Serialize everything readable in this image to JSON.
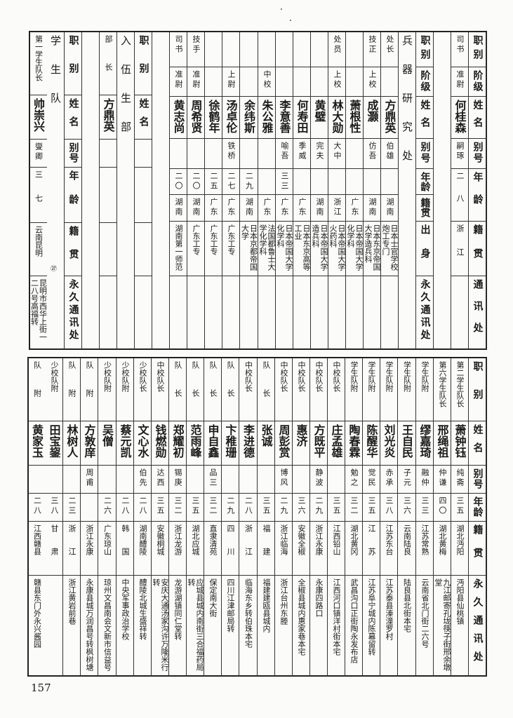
{
  "top": {
    "sections": [
      {
        "title": "",
        "headers": [
          "职别",
          "阶级",
          "姓名",
          "别号",
          "年龄",
          "籍贯",
          "通讯处"
        ],
        "rows": [
          [
            "司书",
            "准尉",
            "何桂森",
            "嗣琢",
            "二八",
            "浙江",
            ""
          ]
        ]
      },
      {
        "title": "兵器研究处",
        "headers": [
          "职别",
          "阶级",
          "姓名",
          "别号",
          "年龄",
          "籍贯",
          "出身",
          "永久通讯处"
        ],
        "rows": [
          [
            "处长",
            "",
            "方鼎英",
            "伯雄",
            "",
            "湖南",
            "日本士官学校炮工专门",
            ""
          ],
          [
            "技正",
            "上校",
            "成灏",
            "仿吾",
            "",
            "湖南",
            "日本东京帝国大学造兵科",
            ""
          ],
          [
            "",
            "",
            "萧根性",
            "",
            "",
            "广东",
            "日本帝国大学化学科",
            ""
          ],
          [
            "处员",
            "上校",
            "林大勋",
            "大中",
            "",
            "浙江",
            "日本帝国大学火药科",
            ""
          ],
          [
            "",
            "",
            "黄璧",
            "完夫",
            "",
            "湖南",
            "日本帝国大学造兵科",
            ""
          ],
          [
            "",
            "",
            "何寿田",
            "季威",
            "",
            "广东",
            "日本东京高等工业",
            ""
          ],
          [
            "",
            "",
            "李意善",
            "喻吾",
            "三三",
            "广东",
            "日本帝国大学化学科",
            ""
          ],
          [
            "",
            "中校",
            "朱公雅",
            "",
            "",
            "广东",
            "法国都鲁士大学化学科",
            ""
          ],
          [
            "",
            "",
            "余纬斯",
            "",
            "二九",
            "湖南",
            "日本京都帝国大学",
            ""
          ],
          [
            "",
            "上尉",
            "汤卓伦",
            "铁桥",
            "二七",
            "广东",
            "广东工专",
            ""
          ],
          [
            "",
            "",
            "徐鹤年",
            "",
            "二五",
            "广东",
            "广东工专",
            ""
          ],
          [
            "技手",
            "准尉",
            "周希贤",
            "",
            "二〇",
            "湖南",
            "广东工专",
            ""
          ],
          [
            "司书",
            "准尉",
            "黄志尚",
            "",
            "二〇",
            "湖南",
            "湖南第一师范",
            ""
          ]
        ]
      },
      {
        "title": "入伍生部",
        "headers": [
          "职别",
          "姓名"
        ],
        "rows": [
          [
            "部长",
            "方鼎英"
          ]
        ]
      },
      {
        "title": "学生队",
        "title_note": "㉗",
        "headers": [
          "职别",
          "姓名",
          "别号",
          "年龄",
          "籍贯",
          "永久通讯处"
        ],
        "rows": [
          [
            "第一学生队长",
            "帅崇兴",
            "燮卿",
            "三七",
            "云南昆明",
            "昆明市西华上街一二八号高福转"
          ]
        ]
      }
    ]
  },
  "bottom": {
    "headers": [
      "职别",
      "姓名",
      "别号",
      "年龄",
      "籍贯",
      "永久通讯处"
    ],
    "rows": [
      [
        "第二学生队长",
        "萧钟钰",
        "纯斋",
        "三五",
        "湖北沔阳",
        "沔阳县仙桃镇"
      ],
      [
        "第六学生队长",
        "邢绳祖",
        "仲谦",
        "四〇",
        "湖北黄梅",
        "九江邮寄孔垅筷子街邢余墩堂"
      ],
      [
        "学生队附",
        "缪嘉琦",
        "融仲",
        "三三",
        "江苏常熟",
        "云南省北门街二六号"
      ],
      [
        "学生队附",
        "王自民",
        "子元",
        "三六",
        "云南陆良",
        "陆良县北街本宅"
      ],
      [
        "学生队附",
        "刘光炎",
        "赤承",
        "三八",
        "江苏东台",
        "江苏泰县溱潼罗村"
      ],
      [
        "学生队附",
        "陈醒华",
        "觉民",
        "三五",
        "江苏",
        "江苏阜宁城内陈幕留转"
      ],
      [
        "学生队附",
        "陶春霖",
        "勉之",
        "三二",
        "湖北黄冈",
        "武昌沟口正街陶永发布店"
      ],
      [
        "中校队长",
        "庄孟雄",
        "",
        "三五",
        "江西铅山",
        "江西河口镇洋村街本宅"
      ],
      [
        "中校队长",
        "方既平",
        "静波",
        "二九",
        "浙江永康",
        "永康四路口"
      ],
      [
        "中校队长",
        "惠济",
        "",
        "三六",
        "安徽全椒",
        "全椒县城内惠家巷本宅"
      ],
      [
        "中校队长",
        "周彭赏",
        "博风",
        "二九",
        "浙江临海",
        "浙江台州东塍"
      ],
      [
        "队长",
        "张诚",
        "",
        "三五",
        "福建",
        "福建建瓯县城内"
      ],
      [
        "中校队长",
        "李进德",
        "",
        "二八",
        "浙江",
        "临海东乡转伯珠本宅"
      ],
      [
        "队长",
        "卞稚珊",
        "",
        "二九",
        "四川",
        "四川江津邮局转"
      ],
      [
        "队长",
        "申自鑫",
        "品三",
        "三二",
        "直隶清苑",
        "保定南大街"
      ],
      [
        "队长",
        "范雨峰",
        "",
        "三五",
        "湖北应城",
        "应城县城内南街三合福药局转"
      ],
      [
        "队长",
        "郑耀初",
        "锡庚",
        "三二",
        "浙江龙游",
        "龙游湖镇同仁堂转"
      ],
      [
        "中校队长",
        "钱燃勋",
        "达西",
        "三五",
        "安徽桐城",
        "安庆大通汤家沟许万隆米行转"
      ],
      [
        "少校队长",
        "文心水",
        "伯先",
        "二八",
        "湖南醴陵",
        "醴陵北城生盛祥转"
      ],
      [
        "少校队附",
        "蔡元凯",
        "",
        "二八",
        "韩国",
        "中央军事政治学校"
      ],
      [
        "少校队附",
        "吴僧",
        "",
        "二六",
        "广东琼山",
        "琼州文昌南会文新市信益号"
      ],
      [
        "队附",
        "方敦庠",
        "周甫",
        "",
        "浙江永康",
        "永康县城万润昌号转枫树塘"
      ],
      [
        "队附",
        "林树人",
        "",
        "二三",
        "浙江",
        "浙江黄岩前巷"
      ],
      [
        "少校队附",
        "田宝鋆",
        "",
        "三八",
        "甘肃",
        ""
      ],
      [
        "队附",
        "黄家玉",
        "",
        "二八",
        "江西赣县",
        "赣县东门外永兴酱园"
      ]
    ]
  },
  "page_number": "157"
}
